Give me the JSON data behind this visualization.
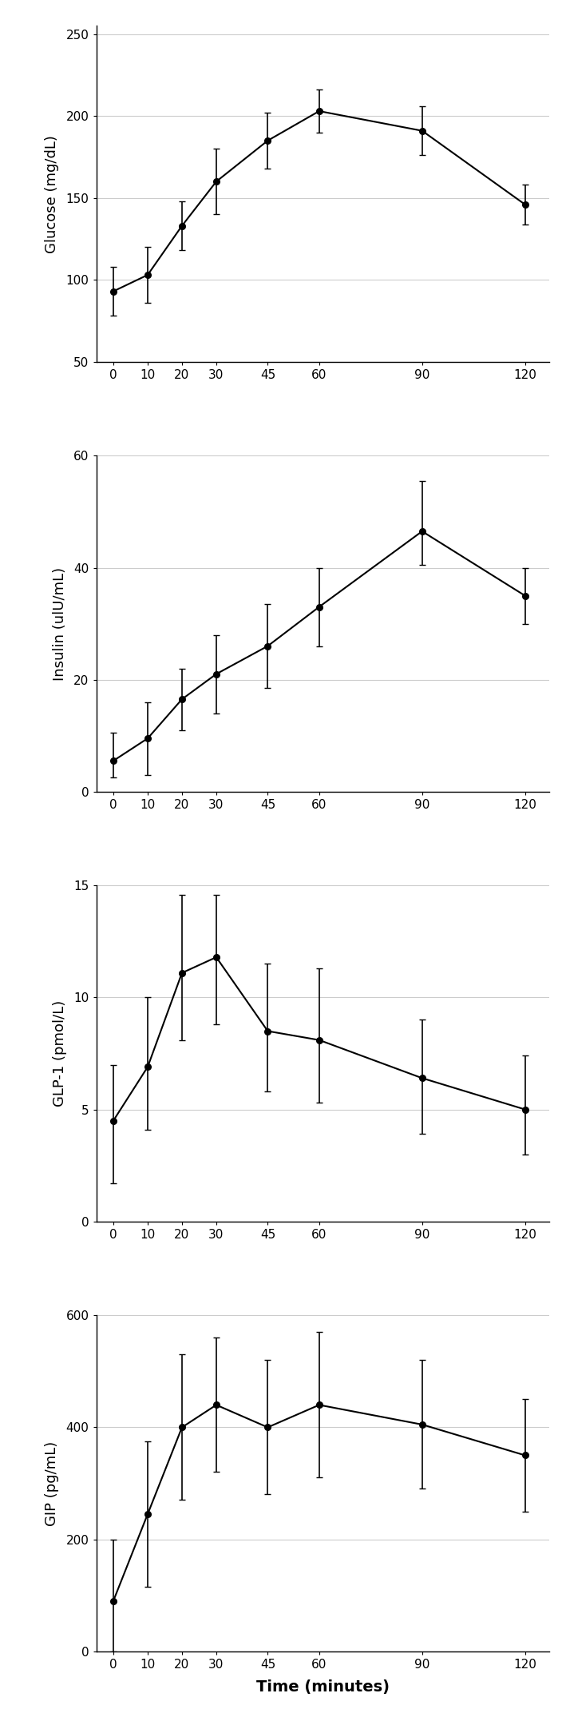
{
  "time": [
    0,
    10,
    20,
    30,
    45,
    60,
    90,
    120
  ],
  "glucose_mean": [
    93,
    103,
    133,
    160,
    185,
    203,
    191,
    146
  ],
  "glucose_err_upper": [
    15,
    17,
    15,
    20,
    17,
    13,
    15,
    12
  ],
  "glucose_err_lower": [
    15,
    17,
    15,
    20,
    17,
    13,
    15,
    12
  ],
  "glucose_ylabel": "Glucose (mg/dL)",
  "glucose_ylim": [
    50,
    255
  ],
  "glucose_yticks": [
    50,
    100,
    150,
    200,
    250
  ],
  "insulin_mean": [
    5.5,
    9.5,
    16.5,
    21,
    26,
    33,
    46.5,
    35
  ],
  "insulin_err_upper": [
    5,
    6.5,
    5.5,
    7,
    7.5,
    7,
    9,
    5
  ],
  "insulin_err_lower": [
    3,
    6.5,
    5.5,
    7,
    7.5,
    7,
    6,
    5
  ],
  "insulin_ylabel": "Insulin (ulU/mL)",
  "insulin_ylim": [
    0,
    60
  ],
  "insulin_yticks": [
    0,
    20,
    40,
    60
  ],
  "glp1_mean": [
    4.5,
    6.9,
    11.1,
    11.8,
    8.5,
    8.1,
    6.4,
    5.0
  ],
  "glp1_err_upper": [
    2.5,
    3.1,
    3.5,
    2.8,
    3.0,
    3.2,
    2.6,
    2.4
  ],
  "glp1_err_lower": [
    2.8,
    2.8,
    3.0,
    3.0,
    2.7,
    2.8,
    2.5,
    2.0
  ],
  "glp1_ylabel": "GLP-1 (pmol/L)",
  "glp1_ylim": [
    0,
    15
  ],
  "glp1_yticks": [
    0,
    5,
    10,
    15
  ],
  "gip_mean": [
    90,
    245,
    400,
    440,
    400,
    440,
    405,
    350
  ],
  "gip_err_upper": [
    110,
    130,
    130,
    120,
    120,
    130,
    115,
    100
  ],
  "gip_err_lower": [
    90,
    130,
    130,
    120,
    120,
    130,
    115,
    100
  ],
  "gip_ylabel": "GIP (pg/mL)",
  "gip_ylim": [
    0,
    600
  ],
  "gip_yticks": [
    0,
    200,
    400,
    600
  ],
  "xlabel": "Time (minutes)",
  "xticks": [
    0,
    10,
    20,
    30,
    45,
    60,
    90,
    120
  ],
  "xticklabels": [
    "0",
    "10",
    "20",
    "30",
    "45",
    "60",
    "90",
    "120"
  ],
  "line_color": "black",
  "marker": "o",
  "markersize": 5.5,
  "linewidth": 1.5,
  "capsize": 3,
  "elinewidth": 1.2,
  "grid_color": "#cccccc",
  "background_color": "white"
}
